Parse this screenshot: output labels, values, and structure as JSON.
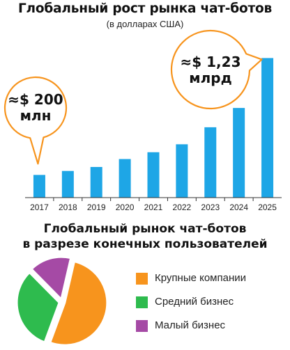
{
  "chart_data": [
    {
      "type": "bar",
      "title": "Глобальный рост рынка чат-ботов",
      "subtitle": "(в долларах США)",
      "categories": [
        "2017",
        "2018",
        "2019",
        "2020",
        "2021",
        "2022",
        "2023",
        "2024",
        "2025"
      ],
      "values": [
        0.2,
        0.235,
        0.27,
        0.34,
        0.4,
        0.47,
        0.62,
        0.79,
        1.23
      ],
      "ylim": [
        0,
        1.3
      ],
      "grid": false,
      "bar_color": "#1ea6e6",
      "annotations": [
        {
          "category": "2017",
          "text": [
            "≈$ 200",
            "млн"
          ]
        },
        {
          "category": "2025",
          "text": [
            "≈$ 1,23",
            "млрд"
          ]
        }
      ],
      "callout_color": "#f7941d"
    },
    {
      "type": "pie",
      "title": [
        "Глобальный рынок чат-ботов",
        "в разрезе конечных пользователей"
      ],
      "slices": [
        {
          "label": "Крупные компании",
          "value": 52,
          "color": "#f7941d"
        },
        {
          "label": "Средний бизнес",
          "value": 32,
          "color": "#2ebb4e"
        },
        {
          "label": "Малый бизнес",
          "value": 16,
          "color": "#a54aa5"
        }
      ]
    }
  ]
}
